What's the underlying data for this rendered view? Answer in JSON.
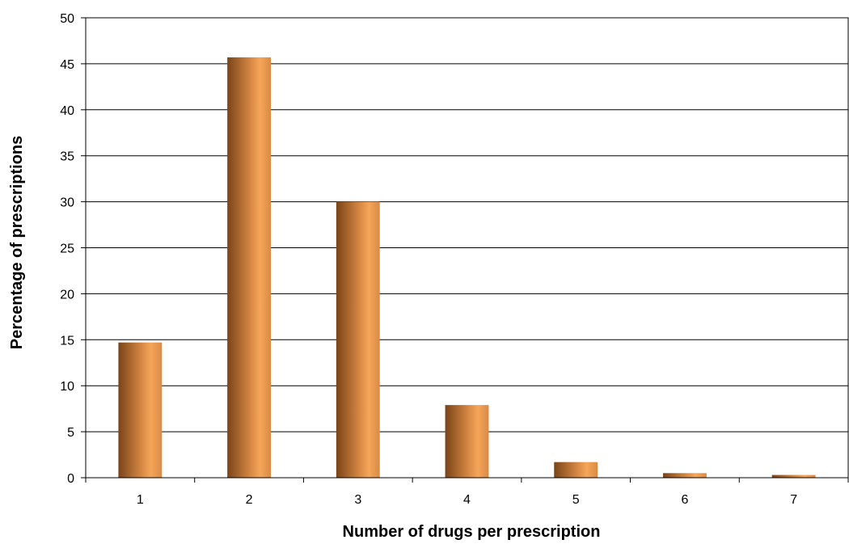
{
  "chart_data": {
    "type": "bar",
    "title": "",
    "xlabel": "Number of drugs per prescription",
    "ylabel": "Percentage of prescriptions",
    "categories": [
      "1",
      "2",
      "3",
      "4",
      "5",
      "6",
      "7"
    ],
    "values": [
      14.7,
      45.7,
      30.0,
      7.9,
      1.7,
      0.5,
      0.3
    ],
    "ylim": [
      0,
      50
    ],
    "yticks": [
      "0",
      "5",
      "10",
      "15",
      "20",
      "25",
      "30",
      "35",
      "40",
      "45",
      "50"
    ],
    "grid": true,
    "legend": "none",
    "colors": {
      "bar_dark": "#7a4418",
      "bar_mid": "#d98a45",
      "bar_light": "#f6a659",
      "grid": "#000000"
    }
  }
}
